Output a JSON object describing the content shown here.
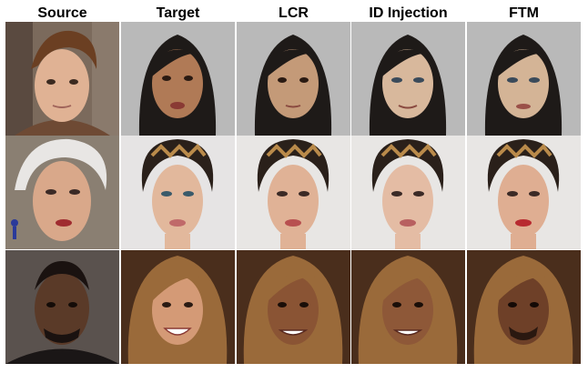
{
  "columns": [
    "Source",
    "Target",
    "LCR",
    "ID Injection",
    "FTM"
  ]
}
